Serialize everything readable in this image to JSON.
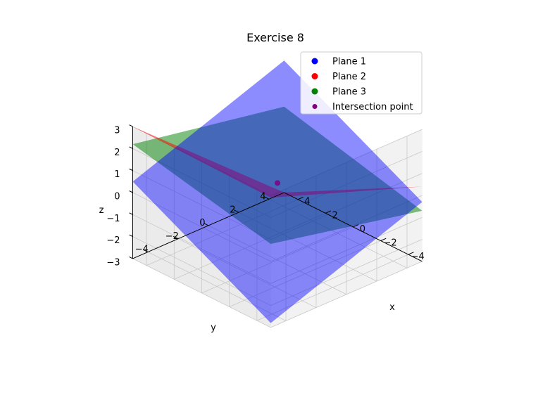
{
  "chart_data": {
    "type": "surface3d",
    "title": "Exercise 8",
    "xlabel": "x",
    "ylabel": "y",
    "zlabel": "z",
    "xlim": [
      -5,
      5
    ],
    "ylim": [
      -5,
      5
    ],
    "zlim": [
      -3,
      3
    ],
    "xticks": [
      -4,
      -2,
      0,
      2,
      4
    ],
    "yticks": [
      -4,
      -2,
      0,
      2,
      4
    ],
    "zticks": [
      -3,
      -2,
      -1,
      0,
      1,
      2,
      3
    ],
    "xtick_labels": [
      "−4",
      "−2",
      "0",
      "2",
      "4"
    ],
    "ytick_labels": [
      "−4",
      "−2",
      "0",
      "2",
      "4"
    ],
    "ztick_labels": [
      "−3",
      "−2",
      "−1",
      "0",
      "1",
      "2",
      "3"
    ],
    "grid": true,
    "legend_position": "top-right",
    "series": [
      {
        "name": "Plane 1",
        "kind": "plane",
        "color": "#0000ff",
        "corners": [
          [
            -5,
            -5,
            -2.8
          ],
          [
            5,
            -5,
            -0.3
          ],
          [
            5,
            5,
            3
          ],
          [
            -5,
            5,
            0.5
          ]
        ]
      },
      {
        "name": "Plane 2",
        "kind": "plane",
        "color": "#ff0000",
        "corners": [
          [
            -5,
            -5,
            2.9
          ],
          [
            5,
            -5,
            0.4
          ],
          [
            5,
            5,
            -3
          ],
          [
            -5,
            5,
            3
          ]
        ]
      },
      {
        "name": "Plane 3",
        "kind": "plane",
        "color": "#008000",
        "corners": [
          [
            -5,
            -5,
            0.8
          ],
          [
            5,
            -5,
            -0.7
          ],
          [
            5,
            5,
            0.9
          ],
          [
            -5,
            5,
            2.2
          ]
        ]
      },
      {
        "name": "Intersection point",
        "kind": "point",
        "color": "#800080",
        "point": [
          0,
          0,
          0.5
        ]
      }
    ]
  }
}
